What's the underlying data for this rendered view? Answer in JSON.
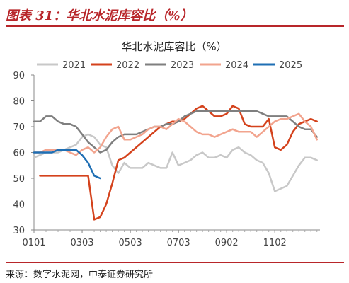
{
  "figure": {
    "label": "图表 31：华北水泥库容比（%）",
    "source": "来源：数字水泥网，中泰证券研究所"
  },
  "colors": {
    "accent": "#b8262a",
    "series": [
      "#c8c8c8",
      "#d4421c",
      "#7f7f7f",
      "#f2a48e",
      "#1f6fb4"
    ]
  },
  "chart_data": {
    "type": "line",
    "title": "华北水泥库容比（%）",
    "xlabel": "",
    "ylabel": "",
    "x_ticks": [
      "0101",
      "0303",
      "0503",
      "0703",
      "0902",
      "1102"
    ],
    "x_tick_positions": [
      1,
      9,
      17,
      25,
      33,
      41
    ],
    "x_range": [
      1,
      48.5
    ],
    "ylim": [
      30,
      90
    ],
    "y_ticks": [
      30,
      40,
      50,
      60,
      70,
      80,
      90
    ],
    "grid": false,
    "legend_position": "top",
    "series": [
      {
        "name": "2021",
        "x": [
          1,
          2,
          3,
          4,
          5,
          6,
          7,
          8,
          9,
          10,
          11,
          12,
          13,
          14,
          15,
          16,
          17,
          18,
          19,
          20,
          21,
          22,
          23,
          24,
          25,
          26,
          27,
          28,
          29,
          30,
          31,
          32,
          33,
          34,
          35,
          36,
          37,
          38,
          39,
          40,
          41,
          42,
          43,
          44,
          45,
          46,
          47,
          48
        ],
        "y": [
          58,
          59,
          60,
          60,
          60,
          61,
          62,
          63,
          66,
          67,
          66,
          63,
          62,
          55,
          52,
          56,
          54,
          54,
          54,
          56,
          55,
          54,
          54,
          60,
          55,
          56,
          57,
          59,
          60,
          58,
          58,
          59,
          58,
          61,
          62,
          60,
          59,
          57,
          56,
          52,
          45,
          46,
          47,
          51,
          55,
          58,
          58,
          57
        ]
      },
      {
        "name": "2022",
        "x": [
          2,
          3,
          4,
          5,
          6,
          7,
          8,
          9,
          10,
          11,
          12,
          13,
          14,
          15,
          16,
          17,
          18,
          19,
          20,
          21,
          22,
          23,
          24,
          25,
          26,
          27,
          28,
          29,
          30,
          31,
          32,
          33,
          34,
          35,
          36,
          37,
          38,
          39,
          40,
          41,
          42,
          43,
          44,
          45,
          46,
          47,
          48
        ],
        "y": [
          51,
          51,
          51,
          51,
          51,
          51,
          51,
          51,
          51,
          34,
          35,
          40,
          48,
          57,
          58,
          60,
          62,
          64,
          66,
          68,
          70,
          71,
          72,
          72,
          73,
          75,
          77,
          78,
          76,
          74,
          74,
          75,
          78,
          77,
          71,
          70,
          70,
          70,
          73,
          62,
          61,
          63,
          68,
          71,
          72,
          73,
          72
        ]
      },
      {
        "name": "2023",
        "x": [
          1,
          2,
          3,
          4,
          5,
          6,
          7,
          8,
          9,
          10,
          11,
          12,
          13,
          14,
          15,
          16,
          17,
          18,
          19,
          20,
          21,
          22,
          23,
          24,
          25,
          26,
          27,
          28,
          29,
          30,
          31,
          32,
          33,
          34,
          35,
          36,
          37,
          38,
          39,
          40,
          41,
          42,
          43,
          44,
          45,
          46,
          47,
          48
        ],
        "y": [
          72,
          72,
          74,
          74,
          72,
          71,
          71,
          70,
          67,
          64,
          62,
          60,
          61,
          64,
          66,
          67,
          67,
          67,
          68,
          69,
          70,
          70,
          71,
          71,
          72,
          74,
          75,
          76,
          76,
          76,
          76,
          76,
          76,
          76,
          76,
          76,
          76,
          76,
          75,
          74,
          74,
          74,
          74,
          72,
          70,
          69,
          69,
          66
        ]
      },
      {
        "name": "2024",
        "x": [
          1,
          2,
          3,
          4,
          5,
          6,
          7,
          8,
          9,
          10,
          11,
          12,
          13,
          14,
          15,
          16,
          17,
          18,
          19,
          20,
          21,
          22,
          23,
          24,
          25,
          26,
          27,
          28,
          29,
          30,
          31,
          32,
          33,
          34,
          35,
          36,
          37,
          38,
          39,
          40,
          41,
          42,
          43,
          44,
          45,
          46,
          47,
          48
        ],
        "y": [
          60,
          60,
          61,
          61,
          61,
          61,
          60,
          59,
          61,
          62,
          60,
          62,
          66,
          69,
          70,
          65,
          65,
          66,
          67,
          69,
          70,
          70,
          69,
          71,
          73,
          72,
          70,
          68,
          67,
          67,
          66,
          67,
          68,
          69,
          68,
          68,
          68,
          66,
          68,
          70,
          72,
          73,
          73,
          74,
          75,
          72,
          70,
          65
        ]
      },
      {
        "name": "2025",
        "x": [
          1,
          2,
          3,
          4,
          5,
          6,
          7,
          8,
          9,
          10,
          11,
          12
        ],
        "y": [
          60,
          60,
          60,
          60,
          61,
          61,
          61,
          61,
          59,
          56,
          51,
          50
        ]
      }
    ]
  }
}
